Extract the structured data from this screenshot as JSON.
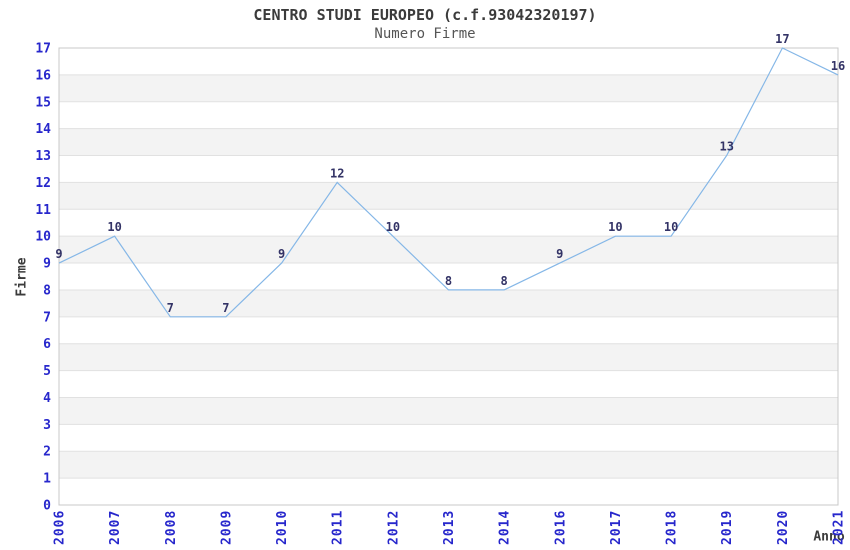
{
  "chart_data": {
    "type": "line",
    "title": "CENTRO STUDI EUROPEO (c.f.93042320197)",
    "subtitle": "Numero Firme",
    "xlabel": "Anno",
    "ylabel": "Firme",
    "categories": [
      "2006",
      "2007",
      "2008",
      "2009",
      "2010",
      "2011",
      "2012",
      "2013",
      "2014",
      "2016",
      "2017",
      "2018",
      "2019",
      "2020",
      "2021"
    ],
    "values": [
      9,
      10,
      7,
      7,
      9,
      12,
      10,
      8,
      8,
      9,
      10,
      10,
      13,
      17,
      16
    ],
    "ylim": [
      0,
      17
    ],
    "y_tick_step": 1,
    "grid": "horizontal",
    "banded_background": true,
    "data_labels": true,
    "legend": "none",
    "colors": {
      "line": "#85b7e7",
      "data_label": "#333366",
      "tick_label": "#2727cc",
      "band": "#f3f3f3",
      "grid": "#e1e1e1",
      "border": "#c8c8c8",
      "title": "#3b3b3b"
    }
  }
}
